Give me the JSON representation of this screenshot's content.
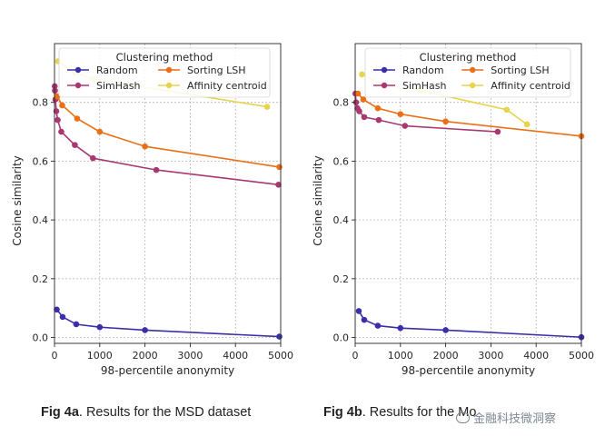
{
  "captions": [
    {
      "bold": "Fig 4a",
      "text": ". Results for the MSD dataset"
    },
    {
      "bold": "Fig 4b",
      "text": ". Results for the Mo"
    }
  ],
  "watermark": {
    "text": "金融科技微洞察",
    "icon": "wechat-icon"
  },
  "chart_data": [
    {
      "type": "line",
      "xlabel": "98-percentile anonymity",
      "ylabel": "Cosine similarity",
      "xlim": [
        0,
        5000
      ],
      "ylim": [
        -0.02,
        1.0
      ],
      "xticks": [
        0,
        1000,
        2000,
        3000,
        4000,
        5000
      ],
      "yticks": [
        0.0,
        0.2,
        0.4,
        0.6,
        0.8
      ],
      "grid": true,
      "legend": {
        "title": "Clustering method",
        "placement": "top",
        "columns": 2
      },
      "series": [
        {
          "name": "Random",
          "color": "#3a2fa8",
          "points": [
            [
              50,
              0.095
            ],
            [
              180,
              0.07
            ],
            [
              480,
              0.045
            ],
            [
              1000,
              0.035
            ],
            [
              2000,
              0.025
            ],
            [
              4970,
              0.003
            ]
          ]
        },
        {
          "name": "SimHash",
          "color": "#a8386f",
          "points": [
            [
              5,
              0.855
            ],
            [
              10,
              0.84
            ],
            [
              20,
              0.81
            ],
            [
              40,
              0.77
            ],
            [
              70,
              0.74
            ],
            [
              150,
              0.7
            ],
            [
              450,
              0.655
            ],
            [
              850,
              0.61
            ],
            [
              2250,
              0.57
            ],
            [
              4950,
              0.52
            ]
          ]
        },
        {
          "name": "Sorting LSH",
          "color": "#ea6f16",
          "points": [
            [
              60,
              0.82
            ],
            [
              170,
              0.79
            ],
            [
              500,
              0.745
            ],
            [
              1000,
              0.7
            ],
            [
              2000,
              0.65
            ],
            [
              4970,
              0.58
            ]
          ]
        },
        {
          "name": "Affinity centroid",
          "color": "#e6d44c",
          "points": [
            [
              80,
              0.94
            ],
            [
              450,
              0.9
            ],
            [
              840,
              0.88
            ],
            [
              4700,
              0.785
            ]
          ]
        }
      ]
    },
    {
      "type": "line",
      "xlabel": "98-percentile anonymity",
      "ylabel": "Cosine similarity",
      "xlim": [
        0,
        5000
      ],
      "ylim": [
        -0.02,
        1.0
      ],
      "xticks": [
        0,
        1000,
        2000,
        3000,
        4000,
        5000
      ],
      "yticks": [
        0.0,
        0.2,
        0.4,
        0.6,
        0.8
      ],
      "grid": true,
      "legend": {
        "title": "Clustering method",
        "placement": "top",
        "columns": 2
      },
      "series": [
        {
          "name": "Random",
          "color": "#3a2fa8",
          "points": [
            [
              80,
              0.09
            ],
            [
              200,
              0.06
            ],
            [
              500,
              0.04
            ],
            [
              1000,
              0.032
            ],
            [
              2000,
              0.025
            ],
            [
              5000,
              0.001
            ]
          ]
        },
        {
          "name": "SimHash",
          "color": "#a8386f",
          "points": [
            [
              5,
              0.83
            ],
            [
              20,
              0.8
            ],
            [
              50,
              0.78
            ],
            [
              90,
              0.77
            ],
            [
              200,
              0.75
            ],
            [
              520,
              0.74
            ],
            [
              1100,
              0.72
            ],
            [
              3150,
              0.7
            ]
          ]
        },
        {
          "name": "Sorting LSH",
          "color": "#ea6f16",
          "points": [
            [
              60,
              0.83
            ],
            [
              180,
              0.81
            ],
            [
              500,
              0.78
            ],
            [
              1000,
              0.76
            ],
            [
              2000,
              0.735
            ],
            [
              5000,
              0.685
            ]
          ]
        },
        {
          "name": "Affinity centroid",
          "color": "#e6d44c",
          "points": [
            [
              150,
              0.895
            ],
            [
              650,
              0.86
            ],
            [
              1450,
              0.84
            ],
            [
              3350,
              0.775
            ],
            [
              3800,
              0.725
            ]
          ]
        }
      ]
    }
  ]
}
